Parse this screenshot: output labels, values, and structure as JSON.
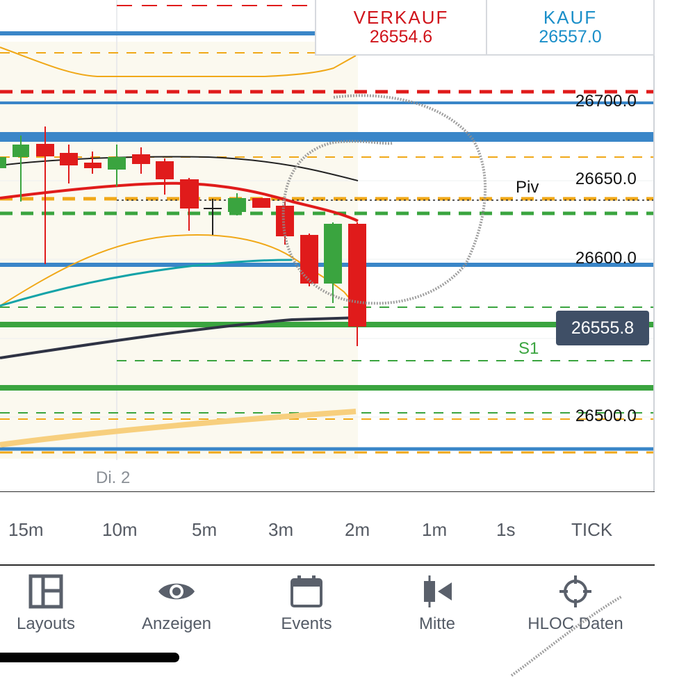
{
  "quotes": {
    "sell": {
      "title": "VERKAUF",
      "value": "26554.6",
      "color": "#d0141b"
    },
    "buy": {
      "title": "KAUF",
      "value": "26557.0",
      "color": "#1b8fc9"
    }
  },
  "chart": {
    "price_labels": [
      "26700.0",
      "26650.0",
      "26600.0",
      "26500.0"
    ],
    "current_price": "26555.8",
    "pivot_label": "Piv",
    "support_label": "S1",
    "date_label": "Di. 2",
    "colors": {
      "bull": "#3aa43f",
      "bear": "#e01b1b",
      "blue_level": "#3a86c8",
      "green_level": "#3aa43f",
      "orange_level": "#f0a818",
      "red_level": "#e01b1b",
      "current_price_bg": "#3f4f66"
    }
  },
  "timeframes": [
    "15m",
    "10m",
    "5m",
    "3m",
    "2m",
    "1m",
    "1s",
    "TICK"
  ],
  "toolbar": [
    {
      "label": "Layouts",
      "icon": "layout-icon"
    },
    {
      "label": "Anzeigen",
      "icon": "eye-icon"
    },
    {
      "label": "Events",
      "icon": "calendar-icon"
    },
    {
      "label": "Mitte",
      "icon": "center-icon"
    },
    {
      "label": "HLOC Daten",
      "icon": "crosshair-icon"
    }
  ]
}
